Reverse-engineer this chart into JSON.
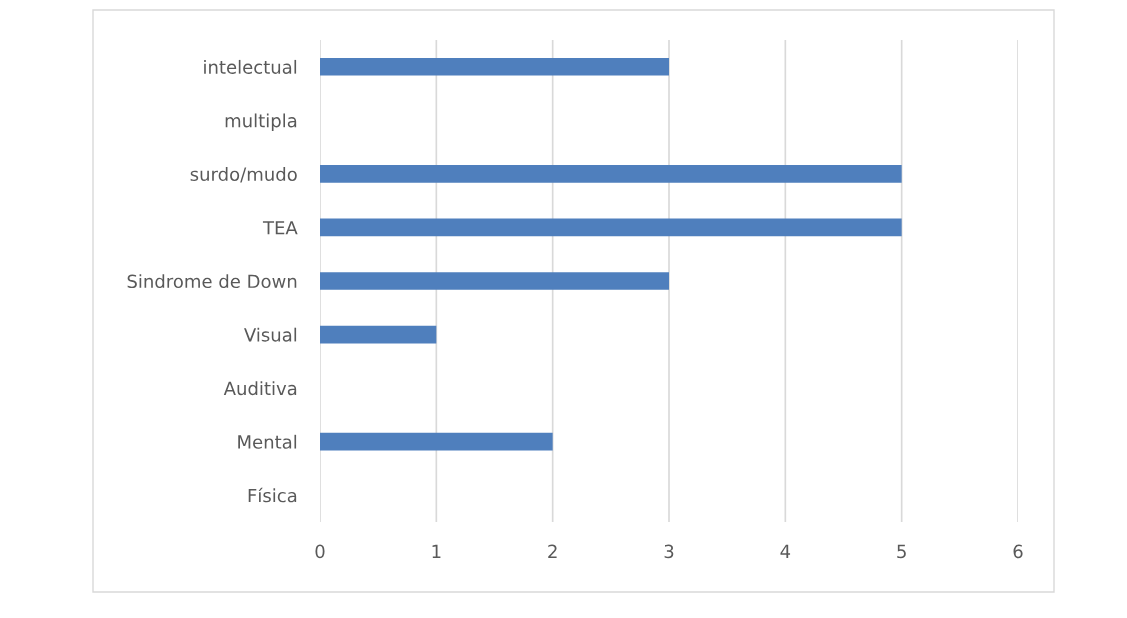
{
  "chart_data": {
    "type": "bar",
    "orientation": "horizontal",
    "categories": [
      "intelectual",
      "multipla",
      "surdo/mudo",
      "TEA",
      "Sindrome de Down",
      "Visual",
      "Auditiva",
      "Mental",
      "Física"
    ],
    "values": [
      3,
      0,
      5,
      5,
      3,
      1,
      0,
      2,
      0
    ],
    "color": "#4f7fbd",
    "xlim": [
      0,
      6
    ],
    "xticks": [
      0,
      1,
      2,
      3,
      4,
      5,
      6
    ],
    "grid": "x"
  }
}
